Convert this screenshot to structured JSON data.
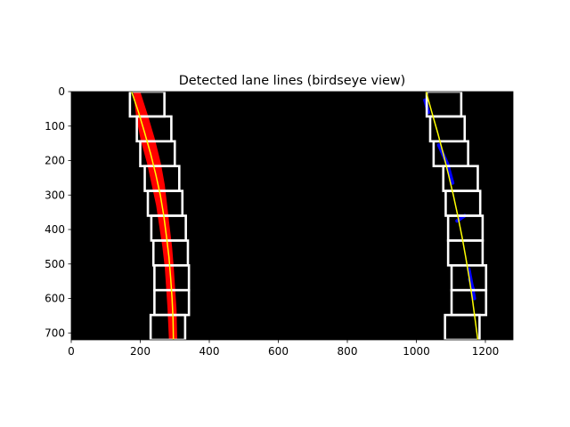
{
  "chart_data": {
    "type": "image",
    "title": "Detected lane lines (birdseye view)",
    "xlabel": "",
    "ylabel": "",
    "xlim": [
      0,
      1280
    ],
    "ylim": [
      720,
      0
    ],
    "x_ticks": [
      0,
      200,
      400,
      600,
      800,
      1000,
      1200
    ],
    "y_ticks": [
      0,
      100,
      200,
      300,
      400,
      500,
      600,
      700
    ],
    "background_color": "#000000",
    "window_color": "#ffffff",
    "left_pixels_color": "#ff0000",
    "right_pixels_color": "#0000ff",
    "fit_color": "#ffff00",
    "sliding_windows": [
      {
        "lane": "left",
        "x": [
          170,
          270
        ],
        "y": [
          0,
          72
        ]
      },
      {
        "lane": "left",
        "x": [
          190,
          290
        ],
        "y": [
          72,
          144
        ]
      },
      {
        "lane": "left",
        "x": [
          200,
          300
        ],
        "y": [
          144,
          216
        ]
      },
      {
        "lane": "left",
        "x": [
          213,
          313
        ],
        "y": [
          216,
          288
        ]
      },
      {
        "lane": "left",
        "x": [
          222,
          322
        ],
        "y": [
          288,
          360
        ]
      },
      {
        "lane": "left",
        "x": [
          232,
          332
        ],
        "y": [
          360,
          432
        ]
      },
      {
        "lane": "left",
        "x": [
          238,
          338
        ],
        "y": [
          432,
          504
        ]
      },
      {
        "lane": "left",
        "x": [
          241,
          341
        ],
        "y": [
          504,
          576
        ]
      },
      {
        "lane": "left",
        "x": [
          241,
          341
        ],
        "y": [
          576,
          648
        ]
      },
      {
        "lane": "left",
        "x": [
          230,
          330
        ],
        "y": [
          648,
          720
        ]
      },
      {
        "lane": "right",
        "x": [
          1030,
          1130
        ],
        "y": [
          0,
          72
        ]
      },
      {
        "lane": "right",
        "x": [
          1040,
          1140
        ],
        "y": [
          72,
          144
        ]
      },
      {
        "lane": "right",
        "x": [
          1050,
          1150
        ],
        "y": [
          144,
          216
        ]
      },
      {
        "lane": "right",
        "x": [
          1078,
          1178
        ],
        "y": [
          216,
          288
        ]
      },
      {
        "lane": "right",
        "x": [
          1085,
          1185
        ],
        "y": [
          288,
          360
        ]
      },
      {
        "lane": "right",
        "x": [
          1092,
          1192
        ],
        "y": [
          360,
          432
        ]
      },
      {
        "lane": "right",
        "x": [
          1092,
          1192
        ],
        "y": [
          432,
          504
        ]
      },
      {
        "lane": "right",
        "x": [
          1102,
          1202
        ],
        "y": [
          504,
          576
        ]
      },
      {
        "lane": "right",
        "x": [
          1102,
          1202
        ],
        "y": [
          576,
          648
        ]
      },
      {
        "lane": "right",
        "x": [
          1083,
          1183
        ],
        "y": [
          648,
          720
        ]
      }
    ],
    "left_lane_pixels": {
      "center_x": [
        190,
        205,
        222,
        240,
        252,
        262,
        270,
        278,
        284,
        288,
        292,
        295
      ],
      "y": [
        0,
        70,
        140,
        210,
        270,
        330,
        390,
        450,
        510,
        570,
        630,
        720
      ],
      "width": [
        20,
        35,
        42,
        40,
        38,
        32,
        30,
        28,
        26,
        26,
        26,
        24
      ]
    },
    "right_lane_segments": [
      {
        "x": [
          1025,
          1035
        ],
        "y": [
          25,
          60
        ]
      },
      {
        "x": [
          1065,
          1090
        ],
        "y": [
          155,
          210
        ]
      },
      {
        "x": [
          1090,
          1105
        ],
        "y": [
          210,
          265
        ]
      },
      {
        "x": [
          1118,
          1140
        ],
        "y": [
          375,
          360
        ]
      },
      {
        "x": [
          1152,
          1168
        ],
        "y": [
          515,
          600
        ]
      },
      {
        "x": [
          1155,
          1165
        ],
        "y": [
          545,
          575
        ]
      }
    ],
    "left_fit": {
      "x": [
        175,
        195,
        213,
        230,
        245,
        258,
        268,
        276,
        283,
        288,
        292,
        295,
        296
      ],
      "y": [
        0,
        60,
        120,
        180,
        240,
        300,
        360,
        420,
        480,
        540,
        600,
        660,
        720
      ]
    },
    "right_fit": {
      "x": [
        1028,
        1045,
        1062,
        1078,
        1093,
        1107,
        1120,
        1132,
        1143,
        1153,
        1162,
        1170,
        1178
      ],
      "y": [
        0,
        60,
        120,
        180,
        240,
        300,
        360,
        420,
        480,
        540,
        600,
        660,
        720
      ]
    }
  }
}
